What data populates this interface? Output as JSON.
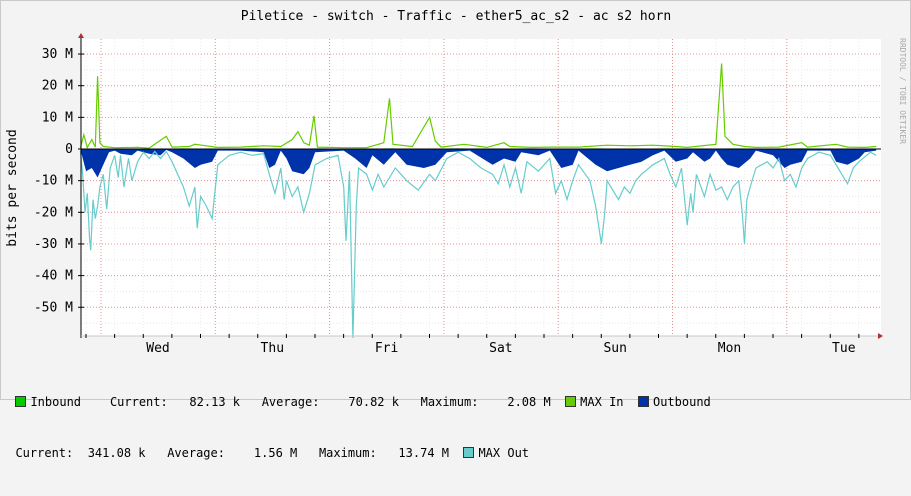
{
  "chart_data": {
    "type": "area",
    "title": "Piletice - switch - Traffic - ether5_ac_s2 - ac s2 horn",
    "ylabel": "bits per second",
    "ylim": [
      -60000000,
      36000000
    ],
    "yticks": [
      {
        "value": 30000000,
        "label": "30 M"
      },
      {
        "value": 20000000,
        "label": "20 M"
      },
      {
        "value": 10000000,
        "label": "10 M"
      },
      {
        "value": 0,
        "label": "0"
      },
      {
        "value": -10000000,
        "label": "-10 M"
      },
      {
        "value": -20000000,
        "label": "-20 M"
      },
      {
        "value": -30000000,
        "label": "-30 M"
      },
      {
        "value": -40000000,
        "label": "-40 M"
      },
      {
        "value": -50000000,
        "label": "-50 M"
      }
    ],
    "xticks": [
      "Wed",
      "Thu",
      "Fri",
      "Sat",
      "Sun",
      "Mon",
      "Tue"
    ],
    "watermark": "RRDTOOL / TOBI OETIKER",
    "grid": true,
    "legend_position": "bottom",
    "x_days": 6.95,
    "series": [
      {
        "name": "Inbound",
        "color": "#00cc00",
        "points": [
          [
            0,
            0.1
          ],
          [
            0.3,
            0.1
          ],
          [
            0.6,
            0.1
          ],
          [
            0.9,
            0.2
          ],
          [
            1.2,
            0.1
          ],
          [
            1.5,
            0.2
          ],
          [
            1.8,
            0.1
          ],
          [
            2.1,
            0.2
          ],
          [
            2.4,
            0.1
          ],
          [
            2.7,
            0.2
          ],
          [
            3.0,
            0.1
          ],
          [
            3.3,
            0.2
          ],
          [
            3.6,
            0.1
          ],
          [
            3.9,
            0.2
          ],
          [
            4.2,
            0.1
          ],
          [
            4.5,
            0.2
          ],
          [
            4.8,
            0.1
          ],
          [
            5.1,
            0.2
          ],
          [
            5.4,
            0.1
          ],
          [
            5.7,
            0.2
          ],
          [
            6.0,
            0.1
          ],
          [
            6.3,
            0.2
          ],
          [
            6.6,
            0.1
          ],
          [
            6.95,
            0.1
          ]
        ]
      },
      {
        "name": "MAX In",
        "color": "#66cc00",
        "points": [
          [
            0,
            0.3
          ],
          [
            0.03,
            4.5
          ],
          [
            0.06,
            0.5
          ],
          [
            0.1,
            3
          ],
          [
            0.13,
            0.6
          ],
          [
            0.15,
            23
          ],
          [
            0.17,
            2
          ],
          [
            0.2,
            0.8
          ],
          [
            0.3,
            0.4
          ],
          [
            0.5,
            0.5
          ],
          [
            0.6,
            0.3
          ],
          [
            0.75,
            4
          ],
          [
            0.8,
            0.6
          ],
          [
            0.95,
            0.8
          ],
          [
            1.0,
            1.5
          ],
          [
            1.1,
            1
          ],
          [
            1.2,
            0.5
          ],
          [
            1.4,
            0.6
          ],
          [
            1.6,
            1
          ],
          [
            1.75,
            0.8
          ],
          [
            1.85,
            3
          ],
          [
            1.9,
            5.5
          ],
          [
            1.95,
            2
          ],
          [
            2.0,
            1.2
          ],
          [
            2.04,
            10.5
          ],
          [
            2.07,
            0.6
          ],
          [
            2.3,
            0.4
          ],
          [
            2.5,
            0.4
          ],
          [
            2.65,
            2
          ],
          [
            2.7,
            16
          ],
          [
            2.73,
            1.5
          ],
          [
            2.9,
            0.8
          ],
          [
            3.05,
            10
          ],
          [
            3.1,
            2.5
          ],
          [
            3.15,
            0.6
          ],
          [
            3.35,
            1.5
          ],
          [
            3.55,
            0.5
          ],
          [
            3.7,
            2
          ],
          [
            3.75,
            0.8
          ],
          [
            3.95,
            0.5
          ],
          [
            4.1,
            0.6
          ],
          [
            4.35,
            0.6
          ],
          [
            4.6,
            1.2
          ],
          [
            4.8,
            1
          ],
          [
            5.0,
            1.2
          ],
          [
            5.2,
            0.8
          ],
          [
            5.3,
            0.5
          ],
          [
            5.55,
            1.5
          ],
          [
            5.6,
            27
          ],
          [
            5.63,
            4
          ],
          [
            5.7,
            1.5
          ],
          [
            5.8,
            0.8
          ],
          [
            5.9,
            0.5
          ],
          [
            6.1,
            0.6
          ],
          [
            6.3,
            2
          ],
          [
            6.35,
            0.6
          ],
          [
            6.6,
            1.5
          ],
          [
            6.7,
            0.6
          ],
          [
            6.85,
            0.5
          ],
          [
            6.95,
            0.8
          ]
        ]
      },
      {
        "name": "Outbound",
        "color": "#0033aa",
        "points": [
          [
            0,
            0
          ],
          [
            0.02,
            -3
          ],
          [
            0.05,
            -7
          ],
          [
            0.1,
            -6
          ],
          [
            0.15,
            -9
          ],
          [
            0.2,
            -5
          ],
          [
            0.25,
            -1
          ],
          [
            0.3,
            -0.5
          ],
          [
            0.35,
            -1.5
          ],
          [
            0.45,
            -2
          ],
          [
            0.5,
            -0.5
          ],
          [
            0.6,
            -1.5
          ],
          [
            0.7,
            -2
          ],
          [
            0.75,
            -0.3
          ],
          [
            0.8,
            -1
          ],
          [
            0.9,
            -3
          ],
          [
            1.0,
            -6
          ],
          [
            1.05,
            -5
          ],
          [
            1.15,
            -4
          ],
          [
            1.2,
            -0.5
          ],
          [
            1.4,
            -0.5
          ],
          [
            1.6,
            -1
          ],
          [
            1.65,
            -6
          ],
          [
            1.7,
            -5
          ],
          [
            1.75,
            -0.5
          ],
          [
            1.8,
            -3
          ],
          [
            1.85,
            -7
          ],
          [
            1.95,
            -8
          ],
          [
            2.0,
            -6
          ],
          [
            2.05,
            -1
          ],
          [
            2.3,
            -0.5
          ],
          [
            2.4,
            -3
          ],
          [
            2.5,
            -6
          ],
          [
            2.55,
            -2
          ],
          [
            2.65,
            -5
          ],
          [
            2.7,
            -3
          ],
          [
            2.75,
            -1
          ],
          [
            2.85,
            -5
          ],
          [
            3.0,
            -6
          ],
          [
            3.1,
            -5
          ],
          [
            3.2,
            -1
          ],
          [
            3.4,
            -0.5
          ],
          [
            3.6,
            -5
          ],
          [
            3.7,
            -3
          ],
          [
            3.8,
            -4
          ],
          [
            3.85,
            -1
          ],
          [
            4.0,
            -2
          ],
          [
            4.1,
            -0.5
          ],
          [
            4.2,
            -6
          ],
          [
            4.3,
            -5
          ],
          [
            4.35,
            -0.5
          ],
          [
            4.5,
            -5
          ],
          [
            4.6,
            -7
          ],
          [
            4.7,
            -6
          ],
          [
            4.8,
            -5
          ],
          [
            4.9,
            -4
          ],
          [
            5.0,
            -2
          ],
          [
            5.1,
            -0.5
          ],
          [
            5.2,
            -4
          ],
          [
            5.3,
            -3
          ],
          [
            5.35,
            -1
          ],
          [
            5.45,
            -4
          ],
          [
            5.5,
            -3
          ],
          [
            5.55,
            -0.5
          ],
          [
            5.6,
            -3
          ],
          [
            5.65,
            -5
          ],
          [
            5.75,
            -6
          ],
          [
            5.85,
            -3
          ],
          [
            5.9,
            -0.5
          ],
          [
            6.05,
            -2
          ],
          [
            6.15,
            -6
          ],
          [
            6.2,
            -5
          ],
          [
            6.3,
            -4
          ],
          [
            6.35,
            -0.5
          ],
          [
            6.55,
            -0.5
          ],
          [
            6.6,
            -4
          ],
          [
            6.7,
            -5
          ],
          [
            6.8,
            -3
          ],
          [
            6.85,
            -1
          ],
          [
            6.95,
            -0.5
          ]
        ]
      },
      {
        "name": "MAX Out",
        "color": "#66cccc",
        "points": [
          [
            0,
            -0.5
          ],
          [
            0.02,
            -8
          ],
          [
            0.04,
            -20
          ],
          [
            0.06,
            -14
          ],
          [
            0.08,
            -28
          ],
          [
            0.09,
            -32
          ],
          [
            0.11,
            -16
          ],
          [
            0.13,
            -22
          ],
          [
            0.15,
            -18
          ],
          [
            0.17,
            -12
          ],
          [
            0.2,
            -8
          ],
          [
            0.23,
            -19
          ],
          [
            0.26,
            -6
          ],
          [
            0.3,
            -2
          ],
          [
            0.33,
            -9
          ],
          [
            0.35,
            -2
          ],
          [
            0.38,
            -12
          ],
          [
            0.42,
            -3
          ],
          [
            0.45,
            -10
          ],
          [
            0.5,
            -4
          ],
          [
            0.55,
            -1
          ],
          [
            0.6,
            -3
          ],
          [
            0.65,
            -0.8
          ],
          [
            0.7,
            -3
          ],
          [
            0.75,
            -0.8
          ],
          [
            0.8,
            -4
          ],
          [
            0.9,
            -12
          ],
          [
            0.95,
            -18
          ],
          [
            1.0,
            -12
          ],
          [
            1.02,
            -25
          ],
          [
            1.05,
            -15
          ],
          [
            1.1,
            -18
          ],
          [
            1.15,
            -22
          ],
          [
            1.2,
            -5
          ],
          [
            1.3,
            -2
          ],
          [
            1.4,
            -1
          ],
          [
            1.5,
            -2
          ],
          [
            1.6,
            -1.5
          ],
          [
            1.65,
            -8
          ],
          [
            1.7,
            -14
          ],
          [
            1.75,
            -6
          ],
          [
            1.78,
            -16
          ],
          [
            1.8,
            -10
          ],
          [
            1.85,
            -15
          ],
          [
            1.9,
            -12
          ],
          [
            1.95,
            -20
          ],
          [
            2.0,
            -14
          ],
          [
            2.05,
            -5
          ],
          [
            2.15,
            -3
          ],
          [
            2.25,
            -2
          ],
          [
            2.3,
            -12
          ],
          [
            2.32,
            -29
          ],
          [
            2.35,
            -7
          ],
          [
            2.38,
            -65
          ],
          [
            2.41,
            -18
          ],
          [
            2.43,
            -6
          ],
          [
            2.5,
            -8
          ],
          [
            2.55,
            -13
          ],
          [
            2.6,
            -8
          ],
          [
            2.65,
            -12
          ],
          [
            2.75,
            -6
          ],
          [
            2.85,
            -10
          ],
          [
            2.95,
            -13
          ],
          [
            3.05,
            -8
          ],
          [
            3.1,
            -10
          ],
          [
            3.2,
            -3
          ],
          [
            3.3,
            -1
          ],
          [
            3.4,
            -3
          ],
          [
            3.5,
            -6
          ],
          [
            3.6,
            -8
          ],
          [
            3.65,
            -11
          ],
          [
            3.7,
            -5
          ],
          [
            3.75,
            -12
          ],
          [
            3.8,
            -6
          ],
          [
            3.85,
            -14
          ],
          [
            3.9,
            -4
          ],
          [
            4.0,
            -7
          ],
          [
            4.1,
            -3
          ],
          [
            4.15,
            -14
          ],
          [
            4.2,
            -10
          ],
          [
            4.25,
            -16
          ],
          [
            4.3,
            -10
          ],
          [
            4.35,
            -5
          ],
          [
            4.45,
            -10
          ],
          [
            4.5,
            -18
          ],
          [
            4.55,
            -30
          ],
          [
            4.58,
            -20
          ],
          [
            4.6,
            -10
          ],
          [
            4.7,
            -16
          ],
          [
            4.75,
            -12
          ],
          [
            4.8,
            -14
          ],
          [
            4.85,
            -10
          ],
          [
            4.9,
            -8
          ],
          [
            5.0,
            -5
          ],
          [
            5.1,
            -3
          ],
          [
            5.15,
            -8
          ],
          [
            5.2,
            -12
          ],
          [
            5.25,
            -6
          ],
          [
            5.3,
            -24
          ],
          [
            5.33,
            -14
          ],
          [
            5.35,
            -20
          ],
          [
            5.38,
            -8
          ],
          [
            5.45,
            -15
          ],
          [
            5.5,
            -8
          ],
          [
            5.55,
            -13
          ],
          [
            5.6,
            -12
          ],
          [
            5.65,
            -16
          ],
          [
            5.7,
            -12
          ],
          [
            5.75,
            -10
          ],
          [
            5.78,
            -20
          ],
          [
            5.8,
            -30
          ],
          [
            5.82,
            -16
          ],
          [
            5.85,
            -12
          ],
          [
            5.9,
            -6
          ],
          [
            6.0,
            -4
          ],
          [
            6.05,
            -6
          ],
          [
            6.1,
            -3
          ],
          [
            6.15,
            -10
          ],
          [
            6.2,
            -8
          ],
          [
            6.25,
            -12
          ],
          [
            6.3,
            -6
          ],
          [
            6.35,
            -3
          ],
          [
            6.45,
            -1
          ],
          [
            6.55,
            -2
          ],
          [
            6.65,
            -8
          ],
          [
            6.7,
            -11
          ],
          [
            6.75,
            -6
          ],
          [
            6.8,
            -4
          ],
          [
            6.9,
            -1
          ],
          [
            6.95,
            -2
          ]
        ]
      }
    ]
  },
  "legend": {
    "inbound": {
      "label": "Inbound",
      "current_label": "Current:",
      "current": "82.13 k",
      "average_label": "Average:",
      "average": "70.82 k",
      "maximum_label": "Maximum:",
      "maximum": "2.08 M"
    },
    "max_in": {
      "label": "MAX In"
    },
    "outbound": {
      "label": "Outbound",
      "current_label": "Current:",
      "current": "341.08 k",
      "average_label": "Average:",
      "average": "1.56 M",
      "maximum_label": "Maximum:",
      "maximum": "13.74 M"
    },
    "max_out": {
      "label": "MAX Out"
    }
  }
}
